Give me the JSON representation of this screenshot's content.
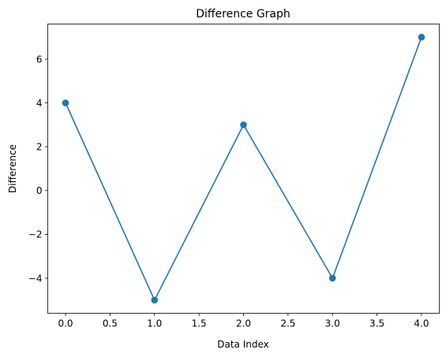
{
  "chart_data": {
    "type": "line",
    "title": "Difference Graph",
    "xlabel": "Data Index",
    "ylabel": "Difference",
    "xlim": [
      -0.2,
      4.2
    ],
    "ylim": [
      -5.6,
      7.6
    ],
    "xticks": [
      0.0,
      0.5,
      1.0,
      1.5,
      2.0,
      2.5,
      3.0,
      3.5,
      4.0
    ],
    "xtick_labels": [
      "0.0",
      "0.5",
      "1.0",
      "1.5",
      "2.0",
      "2.5",
      "3.0",
      "3.5",
      "4.0"
    ],
    "yticks": [
      -4,
      -2,
      0,
      2,
      4,
      6
    ],
    "ytick_labels": [
      "−4",
      "−2",
      "0",
      "2",
      "4",
      "6"
    ],
    "grid": false,
    "legend": "none",
    "series": [
      {
        "x": [
          0,
          1,
          2,
          3,
          4
        ],
        "y": [
          4,
          -5,
          3,
          -4,
          7
        ],
        "color": "#1f77b4",
        "marker": "circle"
      }
    ]
  }
}
